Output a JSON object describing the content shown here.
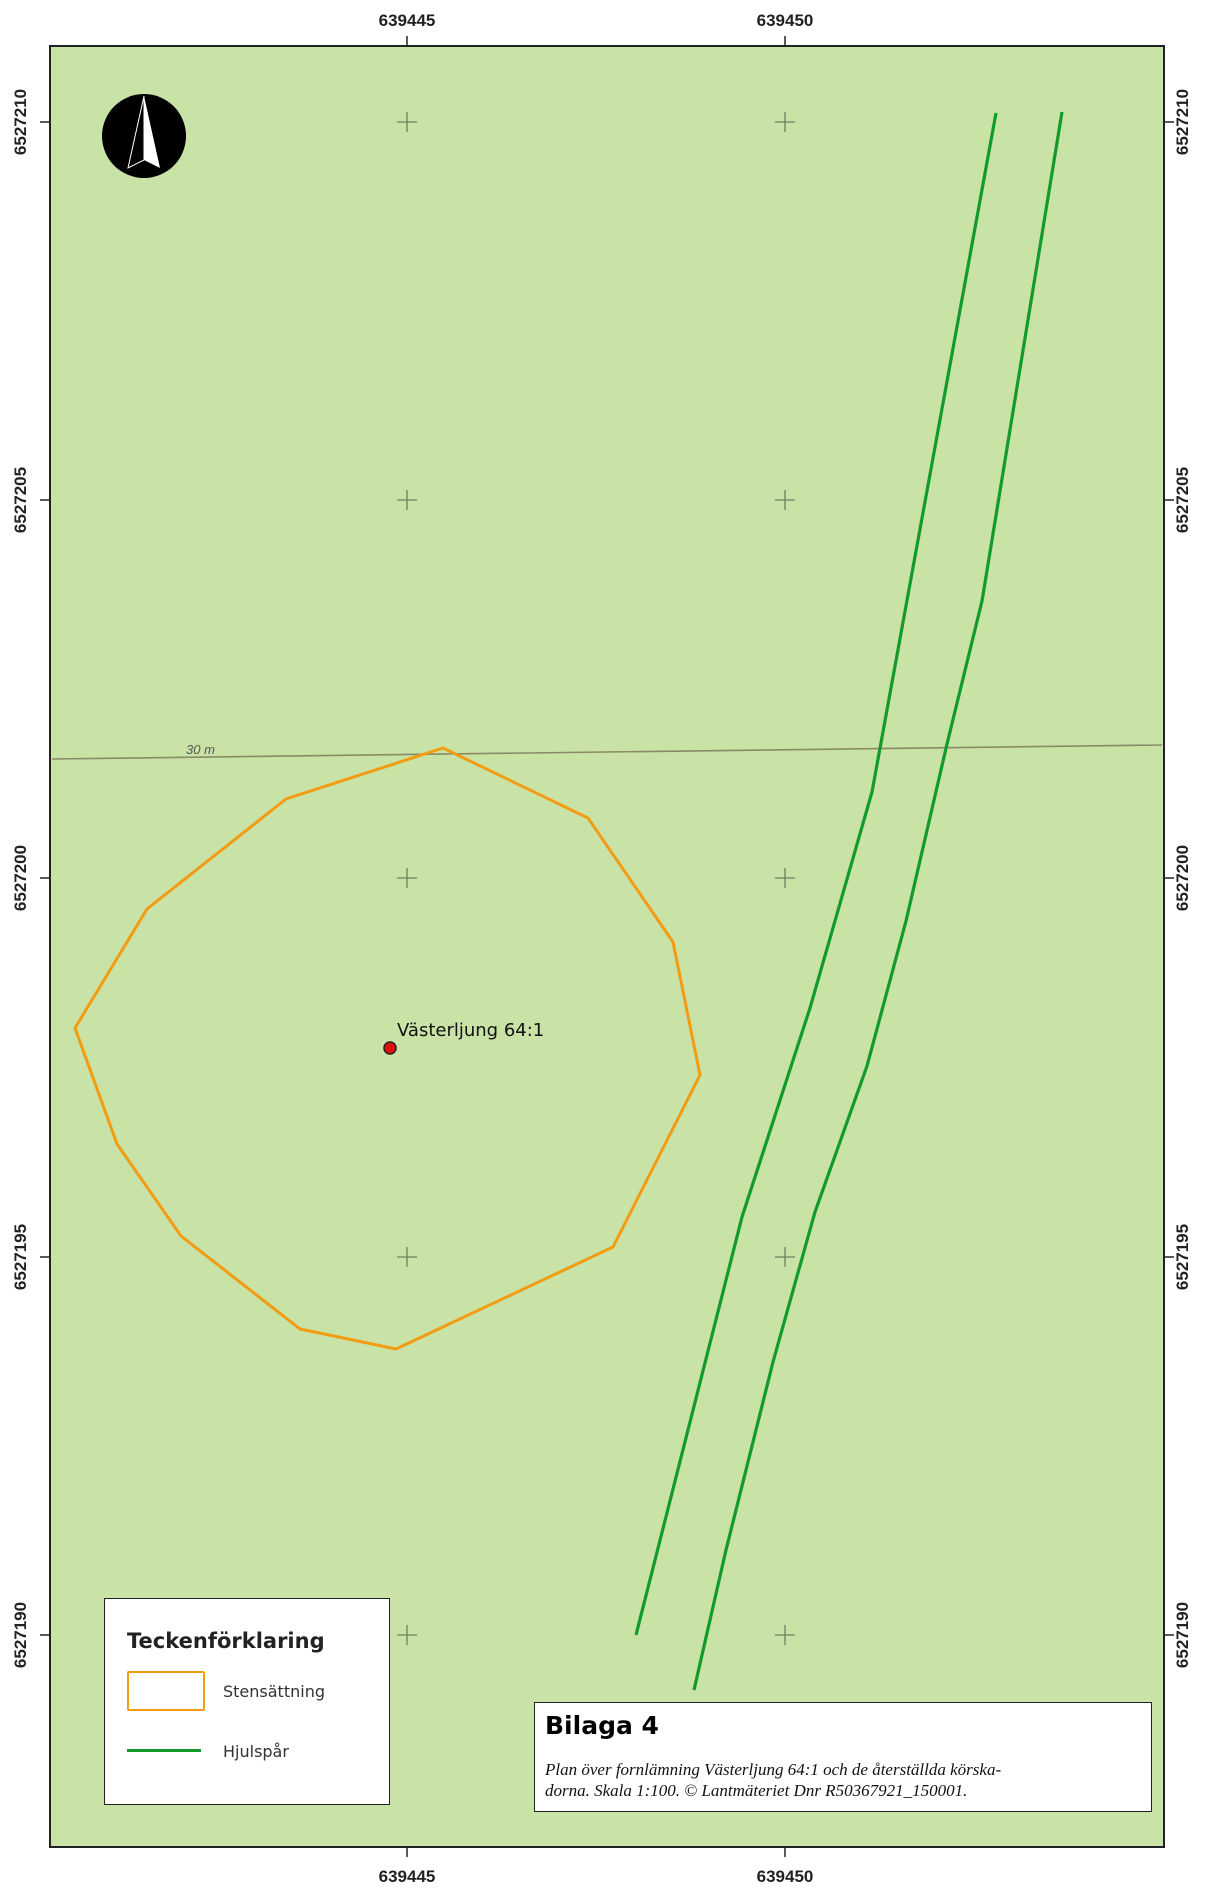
{
  "map": {
    "background_color": "#c9e2a6",
    "frame_color": "#222222",
    "x_ticks": [
      "639445",
      "639450"
    ],
    "y_ticks": [
      "6527210",
      "6527205",
      "6527200",
      "6527195",
      "6527190"
    ],
    "contour_label": "30 m",
    "site_label": "Västerljung 64:1",
    "site_color": "#e01010",
    "stone_setting_color": "#f39c12",
    "wheel_track_color": "#129a2a",
    "north_arrow_icon": "north-arrow-icon"
  },
  "legend": {
    "title": "Teckenförklaring",
    "items": [
      {
        "label": "Stensättning",
        "symbol": "polygon-outline",
        "color": "#f39c12"
      },
      {
        "label": "Hjulspår",
        "symbol": "line",
        "color": "#129a2a"
      }
    ]
  },
  "note": {
    "title": "Bilaga 4",
    "text_line1": "Plan över fornlämning Västerljung 64:1 och de återställda körska-",
    "text_line2": "dorna. Skala 1:100. © Lantmäteriet Dnr R50367921_150001."
  }
}
